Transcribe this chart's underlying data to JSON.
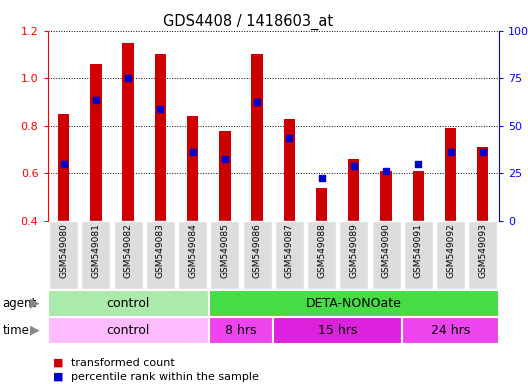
{
  "title": "GDS4408 / 1418603_at",
  "samples": [
    "GSM549080",
    "GSM549081",
    "GSM549082",
    "GSM549083",
    "GSM549084",
    "GSM549085",
    "GSM549086",
    "GSM549087",
    "GSM549088",
    "GSM549089",
    "GSM549090",
    "GSM549091",
    "GSM549092",
    "GSM549093"
  ],
  "transformed_count": [
    0.85,
    1.06,
    1.15,
    1.1,
    0.84,
    0.78,
    1.1,
    0.83,
    0.54,
    0.66,
    0.61,
    0.61,
    0.79,
    0.71
  ],
  "percentile_rank": [
    0.64,
    0.91,
    1.0,
    0.87,
    0.69,
    0.66,
    0.9,
    0.75,
    0.58,
    0.63,
    0.61,
    0.64,
    0.69,
    0.69
  ],
  "ylim_left": [
    0.4,
    1.2
  ],
  "ylim_right": [
    0,
    100
  ],
  "yticks_left": [
    0.4,
    0.6,
    0.8,
    1.0,
    1.2
  ],
  "yticks_right": [
    0,
    25,
    50,
    75,
    100
  ],
  "bar_color": "#cc0000",
  "dot_color": "#0000cc",
  "bar_width": 0.35,
  "agent_control_color": "#aaeaaa",
  "agent_deta_color": "#44dd44",
  "time_control_color": "#ffbbff",
  "time_8hrs_color": "#ee44ee",
  "time_15hrs_color": "#dd22dd",
  "time_24hrs_color": "#ee44ee",
  "control_n": 5,
  "deta_8hrs_n": 2,
  "deta_15hrs_n": 4,
  "deta_24hrs_n": 3,
  "legend_bar_label": "transformed count",
  "legend_dot_label": "percentile rank within the sample",
  "xlabel_color": "#999999",
  "xlabel_bg": "#dddddd"
}
